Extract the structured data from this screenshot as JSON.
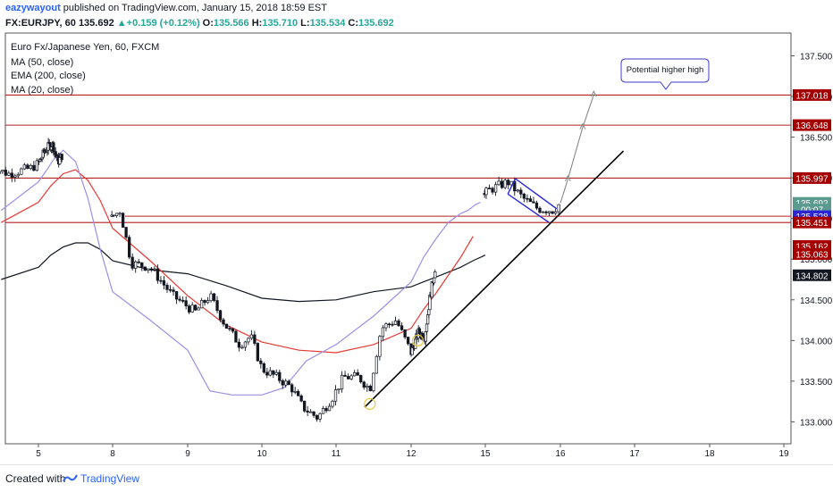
{
  "publish": {
    "author": "eazywayout",
    "text": " published on TradingView.com, January 15, 2018 18:59 EST"
  },
  "quote": {
    "symbol": "FX:EURJPY, 60",
    "last": "135.692",
    "arrow": "▲",
    "change": "+0.159 (+0.12%)",
    "open_label": "O:",
    "open": "135.566",
    "high_label": "H:",
    "high": "135.710",
    "low_label": "L:",
    "low": "135.534",
    "close_label": "C:",
    "close": "135.692"
  },
  "legend": {
    "title": "Euro Fx/Japanese Yen, 60, FXCM",
    "ma50": "MA (50, close)",
    "ema200": "EMA (200, close)",
    "ma20": "MA (20, close)"
  },
  "annotation": {
    "callout": "Potential higher high"
  },
  "footer": {
    "created": "Created with",
    "brand": "TradingView"
  },
  "colors": {
    "up": "#26a69a",
    "candle": "#131722",
    "ma50": "#131722",
    "ema200": "#e53935",
    "ma20": "#9c8fe8",
    "level": "#b22222",
    "trend": "#000000",
    "flag": "#2b2bd6",
    "badge_red": "#a50000",
    "badge_dark": "#131722",
    "badge_blue": "#2a26d6",
    "badge_teal": "#5b9a8f"
  },
  "chart_data": {
    "type": "candlestick",
    "title": "Euro Fx/Japanese Yen, 60, FXCM",
    "ylim": [
      132.73,
      137.78
    ],
    "x_ticks": [
      {
        "label": "5",
        "day": 5
      },
      {
        "label": "8",
        "day": 8
      },
      {
        "label": "9",
        "day": 9
      },
      {
        "label": "10",
        "day": 10
      },
      {
        "label": "11",
        "day": 11
      },
      {
        "label": "12",
        "day": 12
      },
      {
        "label": "15",
        "day": 15
      },
      {
        "label": "16",
        "day": 16
      },
      {
        "label": "17",
        "day": 17
      },
      {
        "label": "18",
        "day": 18
      },
      {
        "label": "19",
        "day": 19
      }
    ],
    "y_ticks": [
      "137.500",
      "137.000",
      "136.500",
      "136.000",
      "135.500",
      "135.000",
      "134.500",
      "134.000",
      "133.500",
      "133.000"
    ],
    "levels": [
      137.018,
      136.648,
      135.997,
      135.528,
      135.451
    ],
    "price_badges": [
      {
        "label": "137.018",
        "price": 137.018,
        "color": "#a50000",
        "text_color": "#ffffff"
      },
      {
        "label": "136.648",
        "price": 136.648,
        "color": "#a50000",
        "text_color": "#ffffff"
      },
      {
        "label": "135.997",
        "price": 135.997,
        "color": "#a50000",
        "text_color": "#ffffff"
      },
      {
        "label": "135.692",
        "price": 135.692,
        "color": "#5b9a8f",
        "text_color": "#ffffff"
      },
      {
        "label": "00:07",
        "price": 135.61,
        "color": "#5b9a8f",
        "text_color": "#ffffff"
      },
      {
        "label": "135.528",
        "price": 135.528,
        "color": "#2a26d6",
        "text_color": "#ffffff"
      },
      {
        "label": "135.451",
        "price": 135.451,
        "color": "#a50000",
        "text_color": "#ffffff"
      },
      {
        "label": "135.162",
        "price": 135.162,
        "color": "#a50000",
        "text_color": "#ffffff"
      },
      {
        "label": "135.063",
        "price": 135.063,
        "color": "#a50000",
        "text_color": "#ffffff"
      },
      {
        "label": "134.802",
        "price": 134.802,
        "color": "#131722",
        "text_color": "#ffffff"
      }
    ],
    "series": [
      {
        "name": "MA (50, close)",
        "points": [
          [
            4.5,
            134.75
          ],
          [
            5,
            134.9
          ],
          [
            5.5,
            135.05
          ],
          [
            6,
            135.15
          ],
          [
            6.5,
            135.2
          ],
          [
            7,
            135.2
          ],
          [
            7.5,
            135.12
          ],
          [
            8,
            134.98
          ],
          [
            8.5,
            134.87
          ],
          [
            9,
            134.82
          ],
          [
            9.5,
            134.68
          ],
          [
            10,
            134.52
          ],
          [
            10.5,
            134.48
          ],
          [
            11,
            134.5
          ],
          [
            11.5,
            134.6
          ],
          [
            12,
            134.66
          ],
          [
            12.5,
            134.72
          ],
          [
            13,
            134.78
          ],
          [
            13.5,
            134.84
          ],
          [
            14,
            134.9
          ],
          [
            14.5,
            134.98
          ],
          [
            15,
            135.05
          ]
        ]
      },
      {
        "name": "EMA (200, close)",
        "points": [
          [
            4.5,
            135.45
          ],
          [
            5,
            135.7
          ],
          [
            5.5,
            135.9
          ],
          [
            6,
            136.05
          ],
          [
            6.5,
            136.1
          ],
          [
            7,
            135.97
          ],
          [
            7.5,
            135.72
          ],
          [
            8,
            135.38
          ],
          [
            8.5,
            134.98
          ],
          [
            9,
            134.55
          ],
          [
            9.5,
            134.2
          ],
          [
            10,
            133.98
          ],
          [
            10.5,
            133.88
          ],
          [
            11,
            133.85
          ],
          [
            11.5,
            133.95
          ],
          [
            12,
            134.15
          ],
          [
            12.5,
            134.38
          ],
          [
            13,
            134.58
          ],
          [
            13.5,
            134.8
          ],
          [
            14,
            135.02
          ],
          [
            14.5,
            135.28
          ]
        ]
      },
      {
        "name": "MA (20, close)",
        "points": [
          [
            4.5,
            135.6
          ],
          [
            5,
            135.95
          ],
          [
            5.3,
            136.08
          ],
          [
            5.6,
            136.22
          ],
          [
            6,
            136.34
          ],
          [
            6.5,
            136.2
          ],
          [
            7,
            135.75
          ],
          [
            7.5,
            135.12
          ],
          [
            8,
            134.6
          ],
          [
            8.5,
            134.25
          ],
          [
            9,
            133.88
          ],
          [
            9.3,
            133.38
          ],
          [
            9.6,
            133.33
          ],
          [
            10,
            133.33
          ],
          [
            10.3,
            133.42
          ],
          [
            10.6,
            133.75
          ],
          [
            11,
            133.95
          ],
          [
            11.5,
            134.3
          ],
          [
            12,
            134.72
          ],
          [
            12.5,
            135.02
          ],
          [
            13,
            135.25
          ],
          [
            13.5,
            135.45
          ],
          [
            14,
            135.56
          ],
          [
            14.3,
            135.6
          ],
          [
            14.6,
            135.67
          ],
          [
            14.8,
            135.7
          ]
        ]
      }
    ]
  }
}
